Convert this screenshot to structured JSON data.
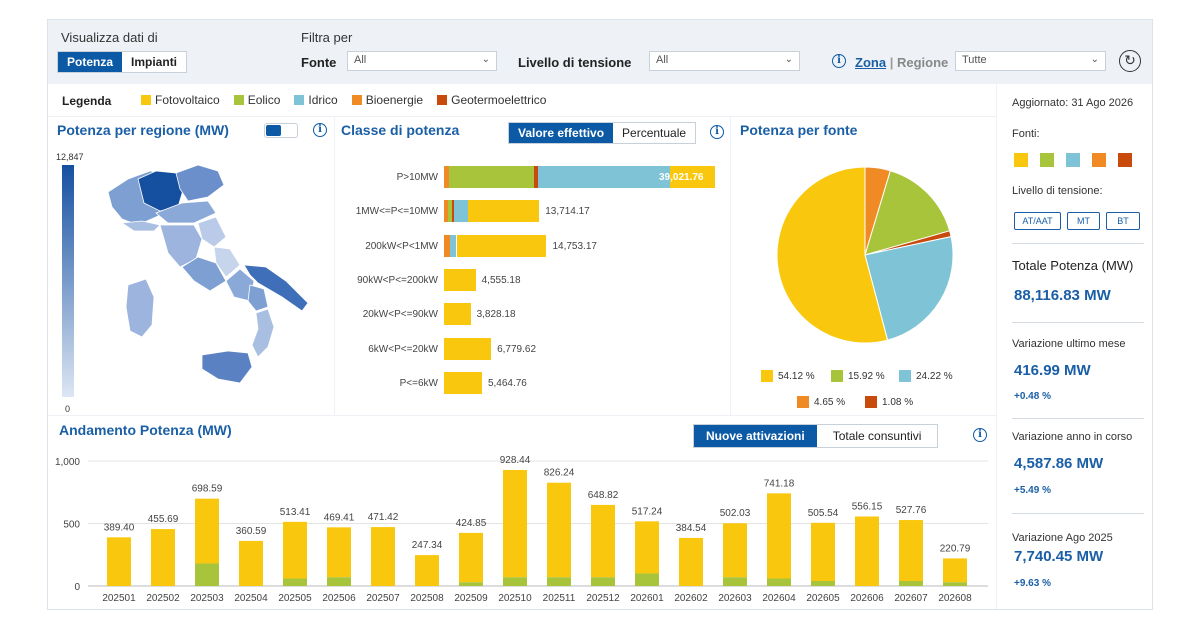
{
  "header": {
    "view_label": "Visualizza dati di",
    "view_options": [
      "Potenza",
      "Impianti"
    ],
    "filter_label": "Filtra per",
    "fonte_label": "Fonte",
    "fonte_value": "All",
    "tension_label": "Livello di tensione",
    "tension_value": "All",
    "zona_label": "Zona",
    "zona_sep": "|",
    "regione_label": "Regione",
    "region_value": "Tutte"
  },
  "legend": {
    "title": "Legenda",
    "items": [
      {
        "label": "Fotovoltaico",
        "color": "#f9c80e"
      },
      {
        "label": "Eolico",
        "color": "#a8c43a"
      },
      {
        "label": "Idrico",
        "color": "#7ec3d6"
      },
      {
        "label": "Bioenergie",
        "color": "#f08a24"
      },
      {
        "label": "Geotermoelettrico",
        "color": "#c84a0c"
      }
    ]
  },
  "map_panel": {
    "title": "Potenza per regione (MW)",
    "scale_max": "12,847",
    "scale_min": "0"
  },
  "class_panel": {
    "title": "Classe di potenza",
    "toggle": [
      "Valore effettivo",
      "Percentuale"
    ],
    "rows": [
      {
        "label": "P>10MW",
        "total": "39,021.76",
        "value": 39021.76,
        "parts": [
          700,
          12300,
          600,
          19000,
          6421.76
        ]
      },
      {
        "label": "1MW<=P<=10MW",
        "total": "13,714.17",
        "value": 13714.17,
        "parts": [
          600,
          600,
          200,
          2000,
          10314.17
        ]
      },
      {
        "label": "200kW<P<1MW",
        "total": "14,753.17",
        "value": 14753.17,
        "parts": [
          800,
          0,
          0,
          1000,
          12953.17
        ]
      },
      {
        "label": "90kW<P<=200kW",
        "total": "4,555.18",
        "value": 4555.18,
        "parts": [
          0,
          0,
          0,
          0,
          4555.18
        ]
      },
      {
        "label": "20kW<P<=90kW",
        "total": "3,828.18",
        "value": 3828.18,
        "parts": [
          0,
          0,
          0,
          0,
          3828.18
        ]
      },
      {
        "label": "6kW<P<=20kW",
        "total": "6,779.62",
        "value": 6779.62,
        "parts": [
          0,
          0,
          0,
          0,
          6779.62
        ]
      },
      {
        "label": "P<=6kW",
        "total": "5,464.76",
        "value": 5464.76,
        "parts": [
          0,
          0,
          0,
          0,
          5464.76
        ]
      }
    ]
  },
  "pie_panel": {
    "title": "Potenza per fonte",
    "slices": [
      {
        "label": "54.12 %",
        "value": 54.12,
        "color": "#f9c80e"
      },
      {
        "label": "15.92 %",
        "value": 15.92,
        "color": "#a8c43a"
      },
      {
        "label": "24.22 %",
        "value": 24.22,
        "color": "#7ec3d6"
      },
      {
        "label": "4.65 %",
        "value": 4.65,
        "color": "#f08a24"
      },
      {
        "label": "1.08 %",
        "value": 1.08,
        "color": "#c84a0c"
      }
    ]
  },
  "trend_panel": {
    "title": "Andamento Potenza (MW)",
    "toggle": [
      "Nuove attivazioni",
      "Totale consuntivi"
    ],
    "y_ticks": [
      "1,000",
      "500",
      "0"
    ]
  },
  "side": {
    "updated": "Aggiornato: 31 Ago 2026",
    "fonti_label": "Fonti:",
    "tension_label": "Livello di tensione:",
    "tension_buttons": [
      "AT/AAT",
      "MT",
      "BT"
    ],
    "total_label": "Totale Potenza (MW)",
    "total_value": "88,116.83 MW",
    "month_label": "Variazione ultimo mese",
    "month_value": "416.99 MW",
    "month_pct": "+0.48 %",
    "year_label": "Variazione anno in corso",
    "year_value": "4,587.86 MW",
    "year_pct": "+5.49 %",
    "prev_label": "Variazione Ago 2025",
    "prev_value": "7,740.45 MW",
    "prev_pct": "+9.63 %"
  },
  "chart_data": [
    {
      "type": "bar",
      "title": "Classe di potenza",
      "categories": [
        "P>10MW",
        "1MW<=P<=10MW",
        "200kW<P<1MW",
        "90kW<P<=200kW",
        "20kW<P<=90kW",
        "6kW<P<=20kW",
        "P<=6kW"
      ],
      "values": [
        39021.76,
        13714.17,
        14753.17,
        4555.18,
        3828.18,
        6779.62,
        5464.76
      ],
      "orientation": "horizontal",
      "stacked": true
    },
    {
      "type": "pie",
      "title": "Potenza per fonte",
      "categories": [
        "Fotovoltaico",
        "Eolico",
        "Idrico",
        "Bioenergie",
        "Geotermoelettrico"
      ],
      "values": [
        54.12,
        15.92,
        24.22,
        4.65,
        1.08
      ]
    },
    {
      "type": "bar",
      "title": "Andamento Potenza (MW)",
      "categories": [
        "202501",
        "202502",
        "202503",
        "202504",
        "202505",
        "202506",
        "202507",
        "202508",
        "202509",
        "202510",
        "202511",
        "202512",
        "202601",
        "202602",
        "202603",
        "202604",
        "202605",
        "202606",
        "202607",
        "202608"
      ],
      "values": [
        389.4,
        455.69,
        698.59,
        360.59,
        513.41,
        469.41,
        471.42,
        247.34,
        424.85,
        928.44,
        826.24,
        648.82,
        517.24,
        384.54,
        502.03,
        741.18,
        505.54,
        556.15,
        527.76,
        220.79
      ],
      "labels": [
        "389.40",
        "455.69",
        "698.59",
        "360.59",
        "513.41",
        "469.41",
        "471.42",
        "247.34",
        "424.85",
        "928.44",
        "826.24",
        "648.82",
        "517.24",
        "384.54",
        "502.03",
        "741.18",
        "505.54",
        "556.15",
        "527.76",
        "220.79"
      ],
      "eolico": [
        0,
        0,
        180,
        0,
        60,
        70,
        0,
        0,
        30,
        70,
        70,
        70,
        100,
        0,
        70,
        60,
        40,
        0,
        40,
        30
      ],
      "ylim": [
        0,
        1000
      ],
      "stacked": true
    }
  ]
}
